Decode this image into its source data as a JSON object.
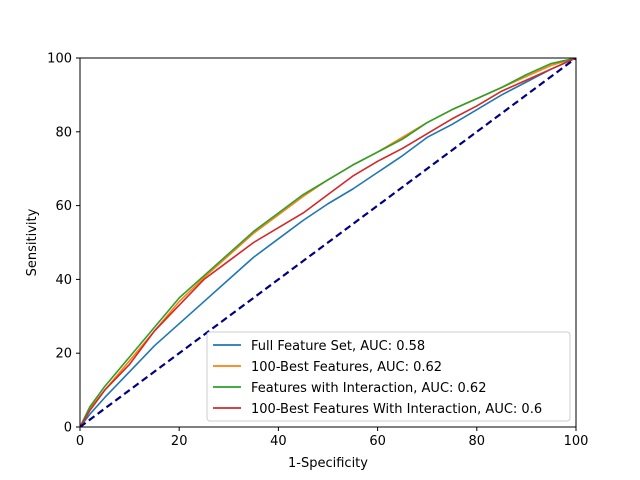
{
  "chart_data": {
    "type": "line",
    "xlabel": "1-Specificity",
    "ylabel": "Sensitivity",
    "xlim": [
      0,
      100
    ],
    "ylim": [
      0,
      100
    ],
    "xticks": [
      0,
      20,
      40,
      60,
      80,
      100
    ],
    "yticks": [
      0,
      20,
      40,
      60,
      80,
      100
    ],
    "grid": false,
    "legend_position": "lower-right",
    "series": [
      {
        "name": "Full Feature Set, AUC: 0.58",
        "color": "#1f77b4",
        "x": [
          0,
          2,
          5,
          10,
          15,
          20,
          25,
          30,
          35,
          40,
          45,
          50,
          55,
          60,
          65,
          70,
          75,
          80,
          85,
          90,
          95,
          100
        ],
        "y": [
          0,
          3.5,
          8,
          15,
          22,
          28,
          34,
          40,
          46,
          51,
          56,
          60.5,
          64.5,
          69,
          73.5,
          78.5,
          82,
          86,
          90,
          93.5,
          97,
          100
        ]
      },
      {
        "name": "100-Best Features, AUC: 0.62",
        "color": "#ff7f0e",
        "x": [
          0,
          2,
          5,
          10,
          15,
          20,
          25,
          30,
          35,
          40,
          45,
          50,
          55,
          60,
          65,
          70,
          75,
          80,
          85,
          90,
          95,
          100
        ],
        "y": [
          0,
          5,
          10,
          18,
          26,
          34,
          40.5,
          46.5,
          52.5,
          57.5,
          62.5,
          67,
          71,
          74.5,
          78.5,
          82.5,
          86,
          89,
          92,
          95,
          98,
          100
        ]
      },
      {
        "name": "Features with Interaction, AUC: 0.62",
        "color": "#2ca02c",
        "x": [
          0,
          2,
          5,
          10,
          15,
          20,
          25,
          30,
          35,
          40,
          45,
          50,
          55,
          60,
          65,
          70,
          75,
          80,
          85,
          90,
          95,
          100
        ],
        "y": [
          0,
          5.5,
          11,
          19,
          27,
          35,
          41,
          47,
          53,
          58,
          63,
          67,
          71,
          74.5,
          78,
          82.5,
          86,
          89,
          92,
          95.5,
          98.5,
          100
        ]
      },
      {
        "name": "100-Best Features With Interaction, AUC: 0.6",
        "color": "#d62728",
        "x": [
          0,
          2,
          5,
          10,
          15,
          20,
          25,
          30,
          35,
          40,
          45,
          50,
          55,
          60,
          65,
          70,
          75,
          80,
          85,
          90,
          95,
          100
        ],
        "y": [
          0,
          4.5,
          10,
          17,
          26,
          33,
          40,
          45,
          50,
          54,
          58,
          63,
          68,
          72,
          75.5,
          79.5,
          83.5,
          87,
          91,
          94,
          97,
          100
        ]
      }
    ],
    "reference_line": {
      "color": "#000080",
      "style": "dashed",
      "x": [
        0,
        100
      ],
      "y": [
        0,
        100
      ]
    }
  }
}
